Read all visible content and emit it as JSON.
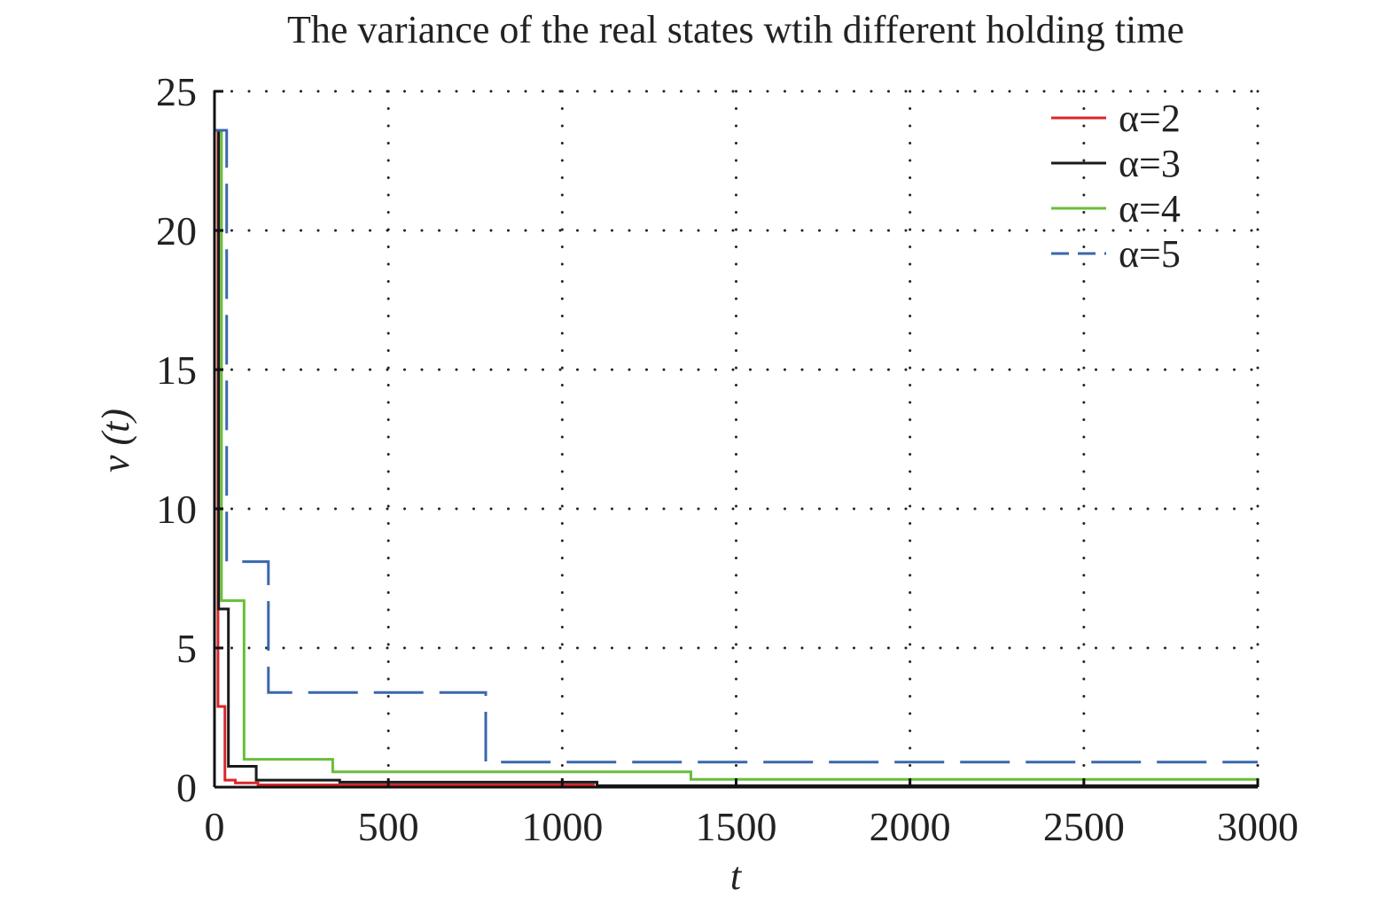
{
  "chart_data": {
    "type": "line",
    "title": "The variance of the real states wtih different holding time",
    "xlabel": "t",
    "ylabel": "v (t)",
    "xlim": [
      0,
      3000
    ],
    "ylim": [
      0,
      25
    ],
    "xticks": [
      0,
      500,
      1000,
      1500,
      2000,
      2500,
      3000
    ],
    "yticks": [
      0,
      5,
      10,
      15,
      20,
      25
    ],
    "xtick_labels": [
      "0",
      "500",
      "1000",
      "1500",
      "2000",
      "2500",
      "3000"
    ],
    "ytick_labels": [
      "0",
      "5",
      "10",
      "15",
      "20",
      "25"
    ],
    "grid": true,
    "legend_position": "top-right",
    "step": true,
    "series": [
      {
        "name": "α=2",
        "color": "#d9262b",
        "dash": "solid",
        "x": [
          0,
          10,
          30,
          60,
          125,
          1090
        ],
        "y": [
          23.6,
          2.9,
          0.25,
          0.15,
          0.08,
          0.05
        ]
      },
      {
        "name": "α=3",
        "color": "#1a1a1a",
        "dash": "solid",
        "x": [
          0,
          12,
          40,
          120,
          360,
          1100,
          3000
        ],
        "y": [
          23.6,
          6.4,
          0.75,
          0.25,
          0.18,
          0.05,
          0.05
        ]
      },
      {
        "name": "α=4",
        "color": "#69bd3a",
        "dash": "solid",
        "x": [
          0,
          20,
          85,
          340,
          1370,
          3000
        ],
        "y": [
          23.6,
          6.7,
          1.0,
          0.55,
          0.28,
          0.28
        ]
      },
      {
        "name": "α=5",
        "color": "#3a67ad",
        "dash": "dashed",
        "x": [
          0,
          35,
          155,
          780,
          3000
        ],
        "y": [
          23.6,
          8.1,
          3.4,
          0.9,
          0.9
        ]
      }
    ]
  }
}
